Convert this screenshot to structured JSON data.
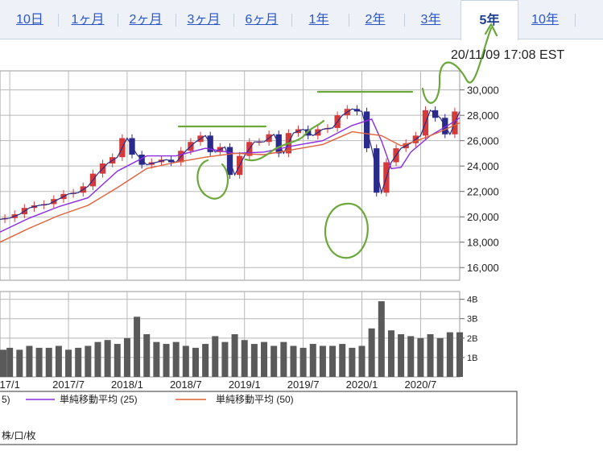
{
  "tabs": [
    {
      "label": "10日",
      "active": false
    },
    {
      "label": "1ヶ月",
      "active": false
    },
    {
      "label": "2ヶ月",
      "active": false
    },
    {
      "label": "3ヶ月",
      "active": false
    },
    {
      "label": "6ヶ月",
      "active": false
    },
    {
      "label": "1年",
      "active": false
    },
    {
      "label": "2年",
      "active": false
    },
    {
      "label": "3年",
      "active": false
    },
    {
      "label": "5年",
      "active": true
    },
    {
      "label": "10年",
      "active": false
    }
  ],
  "timestamp": "20/11/09 17:08 EST",
  "colors": {
    "price": "#2a2a8a",
    "up_candle": "#d33a3a",
    "down_candle": "#2a2a8a",
    "ma25": "#8a2be2",
    "ma50": "#e0603a",
    "volume": "#5a5a5a",
    "annotation": "#6aa83a",
    "grid": "#b8b8b8",
    "tab_link": "#2a56c6"
  },
  "chart_data": {
    "type": "line",
    "price_axis": {
      "ticks": [
        "30,000",
        "28,000",
        "26,000",
        "24,000",
        "22,000",
        "20,000",
        "18,000",
        "16,000"
      ],
      "ylim": [
        15000,
        31500
      ]
    },
    "volume_axis": {
      "ticks": [
        "4B",
        "3B",
        "2B",
        "1B"
      ],
      "ylim": [
        0,
        4.4
      ]
    },
    "x_ticks": [
      "17/1",
      "2017/7",
      "2018/1",
      "2018/7",
      "2019/1",
      "2019/7",
      "2020/1",
      "2020/7"
    ],
    "x_range": [
      "2016-12",
      "2020-11"
    ],
    "series": [
      {
        "key": "price",
        "x": [
          "2016-12",
          "2017-01",
          "2017-02",
          "2017-03",
          "2017-04",
          "2017-05",
          "2017-06",
          "2017-07",
          "2017-08",
          "2017-09",
          "2017-10",
          "2017-11",
          "2017-12",
          "2018-01",
          "2018-02",
          "2018-03",
          "2018-04",
          "2018-05",
          "2018-06",
          "2018-07",
          "2018-08",
          "2018-09",
          "2018-10",
          "2018-11",
          "2018-12",
          "2019-01",
          "2019-02",
          "2019-03",
          "2019-04",
          "2019-05",
          "2019-06",
          "2019-07",
          "2019-08",
          "2019-09",
          "2019-10",
          "2019-11",
          "2019-12",
          "2020-01",
          "2020-02",
          "2020-03",
          "2020-04",
          "2020-05",
          "2020-06",
          "2020-07",
          "2020-08",
          "2020-09",
          "2020-10",
          "2020-11"
        ],
        "values": [
          19800,
          19900,
          20200,
          20700,
          20900,
          21000,
          21400,
          21800,
          21900,
          22400,
          23400,
          24200,
          24700,
          26200,
          24900,
          24100,
          24300,
          24500,
          24300,
          25200,
          25900,
          26400,
          25100,
          25500,
          23300,
          24800,
          25900,
          25900,
          26500,
          25000,
          26600,
          26900,
          26400,
          26900,
          27000,
          28000,
          28500,
          28300,
          25400,
          21900,
          24300,
          25400,
          25800,
          26400,
          28400,
          27800,
          26500,
          28300
        ]
      },
      {
        "key": "ma25",
        "name": "単純移動平均 (25)",
        "x": [
          "2016-12",
          "2017-03",
          "2017-06",
          "2017-09",
          "2017-12",
          "2018-03",
          "2018-06",
          "2018-09",
          "2018-12",
          "2019-03",
          "2019-06",
          "2019-09",
          "2019-12",
          "2020-02",
          "2020-03",
          "2020-04",
          "2020-05",
          "2020-06",
          "2020-08",
          "2020-10",
          "2020-11"
        ],
        "values": [
          18800,
          19900,
          20800,
          21500,
          23600,
          24800,
          24800,
          25400,
          25000,
          25100,
          25600,
          26000,
          27200,
          27700,
          26000,
          23800,
          23900,
          25100,
          26400,
          27300,
          27800
        ]
      },
      {
        "key": "ma50",
        "name": "単純移動平均 (50)",
        "x": [
          "2016-12",
          "2017-03",
          "2017-06",
          "2017-09",
          "2017-12",
          "2018-03",
          "2018-06",
          "2018-09",
          "2018-12",
          "2019-03",
          "2019-06",
          "2019-09",
          "2019-12",
          "2020-03",
          "2020-05",
          "2020-07",
          "2020-09",
          "2020-11"
        ],
        "values": [
          18000,
          19100,
          20100,
          20900,
          22300,
          23800,
          24300,
          24700,
          25000,
          24900,
          25300,
          25700,
          26700,
          26400,
          25600,
          26100,
          26700,
          27400
        ]
      }
    ],
    "volume": {
      "x": [
        "2016-12",
        "2017-01",
        "2017-02",
        "2017-03",
        "2017-04",
        "2017-05",
        "2017-06",
        "2017-07",
        "2017-08",
        "2017-09",
        "2017-10",
        "2017-11",
        "2017-12",
        "2018-01",
        "2018-02",
        "2018-03",
        "2018-04",
        "2018-05",
        "2018-06",
        "2018-07",
        "2018-08",
        "2018-09",
        "2018-10",
        "2018-11",
        "2018-12",
        "2019-01",
        "2019-02",
        "2019-03",
        "2019-04",
        "2019-05",
        "2019-06",
        "2019-07",
        "2019-08",
        "2019-09",
        "2019-10",
        "2019-11",
        "2019-12",
        "2020-01",
        "2020-02",
        "2020-03",
        "2020-04",
        "2020-05",
        "2020-06",
        "2020-07",
        "2020-08",
        "2020-09",
        "2020-10",
        "2020-11"
      ],
      "values": [
        1.4,
        1.5,
        1.4,
        1.6,
        1.5,
        1.5,
        1.6,
        1.4,
        1.5,
        1.6,
        1.8,
        1.9,
        1.7,
        2.0,
        3.1,
        2.2,
        1.8,
        1.7,
        1.8,
        1.6,
        1.5,
        1.7,
        2.1,
        1.8,
        2.2,
        1.9,
        1.7,
        1.8,
        1.6,
        1.8,
        1.6,
        1.5,
        1.7,
        1.6,
        1.6,
        1.7,
        1.5,
        1.6,
        2.5,
        3.9,
        2.4,
        2.2,
        2.1,
        2.0,
        2.2,
        2.0,
        2.3,
        2.3
      ]
    },
    "legend": [
      {
        "label": "5)",
        "color": "#2a2a8a"
      },
      {
        "label": "単純移動平均 (25)",
        "color": "#8a2be2"
      },
      {
        "label": "単純移動平均 (50)",
        "color": "#e0603a"
      }
    ],
    "unit_note": "株/口/枚"
  }
}
